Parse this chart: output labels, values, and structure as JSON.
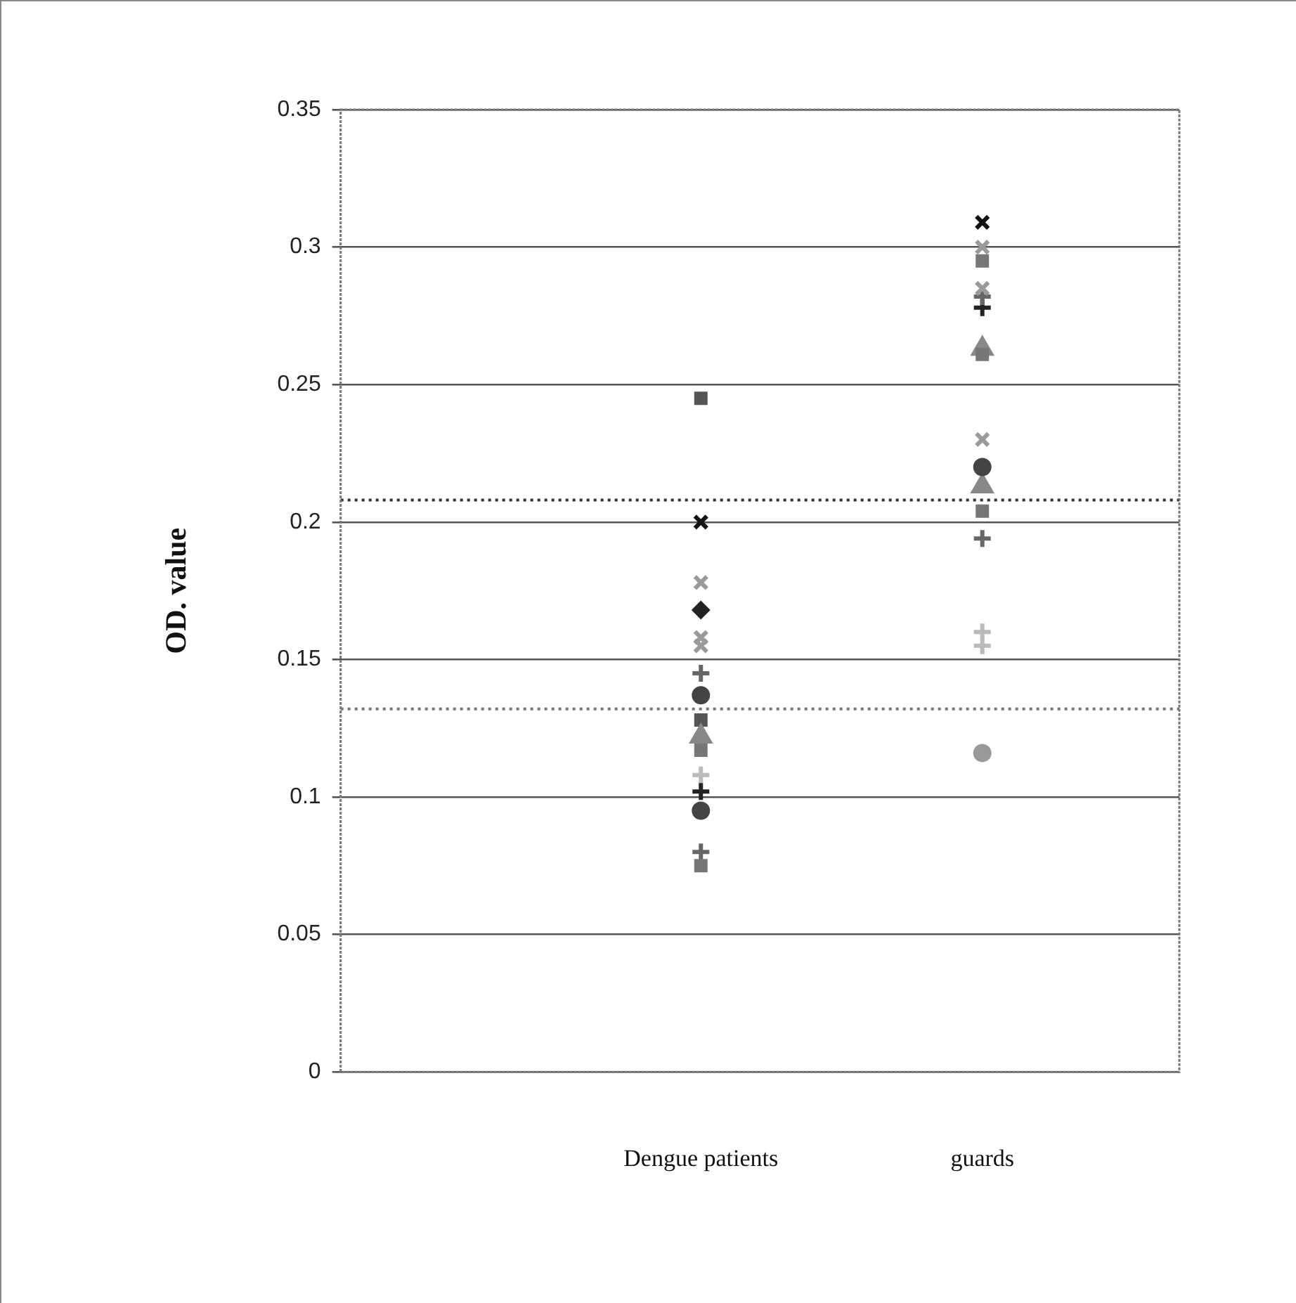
{
  "chart_data": {
    "type": "scatter",
    "ylabel": "OD. value",
    "categories": [
      "Dengue patients",
      "guards"
    ],
    "ylim": [
      0,
      0.35
    ],
    "yticks": [
      0,
      0.05,
      0.1,
      0.15,
      0.2,
      0.25,
      0.3,
      0.35
    ],
    "grid": "y",
    "legend": false,
    "series": [
      {
        "color": "#111111",
        "marker": "cross-x",
        "x": [
          "Dengue patients",
          "guards"
        ],
        "values": [
          0.2,
          0.309
        ]
      },
      {
        "color": "#9a9a9a",
        "marker": "cross-x",
        "x": [
          "Dengue patients",
          "Dengue patients",
          "Dengue patients",
          "guards",
          "guards",
          "guards"
        ],
        "values": [
          0.178,
          0.158,
          0.155,
          0.3,
          0.285,
          0.23
        ]
      },
      {
        "color": "#444444",
        "marker": "circle",
        "x": [
          "Dengue patients",
          "Dengue patients",
          "guards"
        ],
        "values": [
          0.137,
          0.095,
          0.22
        ]
      },
      {
        "color": "#999999",
        "marker": "circle",
        "x": [
          "guards"
        ],
        "values": [
          0.116
        ]
      },
      {
        "color": "#222222",
        "marker": "diamond",
        "x": [
          "Dengue patients"
        ],
        "values": [
          0.168
        ]
      },
      {
        "color": "#777777",
        "marker": "square",
        "x": [
          "Dengue patients",
          "Dengue patients",
          "guards",
          "guards",
          "guards"
        ],
        "values": [
          0.117,
          0.075,
          0.295,
          0.261,
          0.204
        ]
      },
      {
        "color": "#888888",
        "marker": "triangle",
        "x": [
          "Dengue patients",
          "guards",
          "guards"
        ],
        "values": [
          0.122,
          0.263,
          0.213
        ]
      },
      {
        "color": "#666666",
        "marker": "cross",
        "x": [
          "Dengue patients",
          "Dengue patients",
          "guards",
          "guards"
        ],
        "values": [
          0.145,
          0.08,
          0.282,
          0.194
        ]
      },
      {
        "color": "#222222",
        "marker": "cross",
        "x": [
          "Dengue patients",
          "guards"
        ],
        "values": [
          0.102,
          0.278
        ]
      },
      {
        "color": "#bbbbbb",
        "marker": "cross",
        "x": [
          "Dengue patients",
          "guards",
          "guards"
        ],
        "values": [
          0.108,
          0.16,
          0.155
        ]
      },
      {
        "color": "#555555",
        "marker": "square",
        "x": [
          "Dengue patients",
          "Dengue patients"
        ],
        "values": [
          0.245,
          0.128
        ]
      }
    ],
    "ref_lines": [
      {
        "axis": "y",
        "value": 0.132,
        "color": "#777777",
        "line_style": "dotted"
      },
      {
        "axis": "y",
        "value": 0.208,
        "color": "#333333",
        "line_style": "dotted"
      }
    ]
  }
}
